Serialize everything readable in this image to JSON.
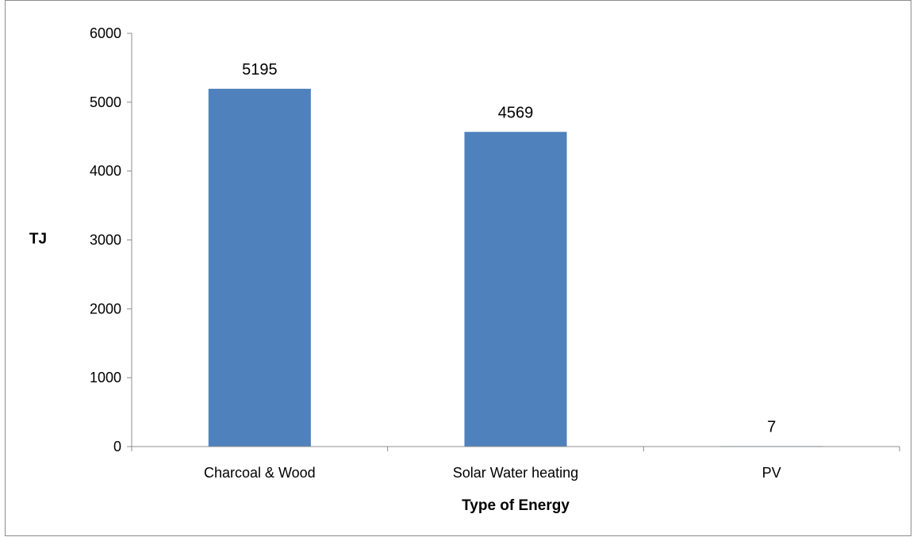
{
  "chart_data": {
    "type": "bar",
    "title": "",
    "xlabel": "Type of Energy",
    "ylabel": "TJ",
    "categories": [
      "Charcoal & Wood",
      "Solar Water heating",
      "PV"
    ],
    "values": [
      5195,
      4569,
      7
    ],
    "data_labels": [
      "5195",
      "4569",
      "7"
    ],
    "ylim": [
      0,
      6000
    ],
    "y_ticks": [
      0,
      1000,
      2000,
      3000,
      4000,
      5000,
      6000
    ],
    "y_tick_labels": [
      "0",
      "1000",
      "2000",
      "3000",
      "4000",
      "5000",
      "6000"
    ],
    "grid": false,
    "legend": "none",
    "bar_color": "#4f81bd",
    "axis_color": "#8c8c8c"
  }
}
